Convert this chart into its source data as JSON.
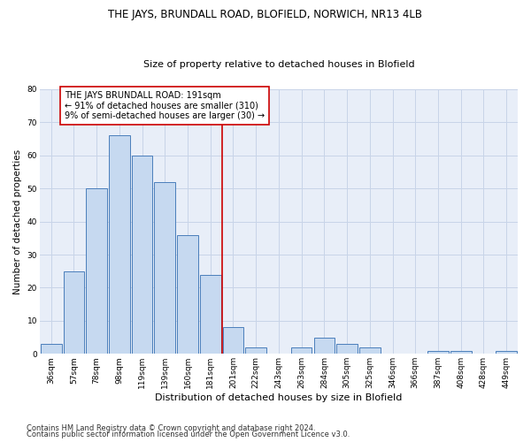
{
  "title": "THE JAYS, BRUNDALL ROAD, BLOFIELD, NORWICH, NR13 4LB",
  "subtitle": "Size of property relative to detached houses in Blofield",
  "xlabel": "Distribution of detached houses by size in Blofield",
  "ylabel": "Number of detached properties",
  "bin_labels": [
    "36sqm",
    "57sqm",
    "78sqm",
    "98sqm",
    "119sqm",
    "139sqm",
    "160sqm",
    "181sqm",
    "201sqm",
    "222sqm",
    "243sqm",
    "263sqm",
    "284sqm",
    "305sqm",
    "325sqm",
    "346sqm",
    "366sqm",
    "387sqm",
    "408sqm",
    "428sqm",
    "449sqm"
  ],
  "bar_values": [
    3,
    25,
    50,
    66,
    60,
    52,
    36,
    24,
    8,
    2,
    0,
    2,
    5,
    3,
    2,
    0,
    0,
    1,
    1,
    0,
    1
  ],
  "bar_color": "#c6d9f0",
  "bar_edge_color": "#4a7ebb",
  "ylim": [
    0,
    80
  ],
  "yticks": [
    0,
    10,
    20,
    30,
    40,
    50,
    60,
    70,
    80
  ],
  "ref_line_x_label": "191sqm",
  "annotation_text": "THE JAYS BRUNDALL ROAD: 191sqm\n← 91% of detached houses are smaller (310)\n9% of semi-detached houses are larger (30) →",
  "annotation_box_color": "#ffffff",
  "annotation_box_edge": "#cc0000",
  "ref_line_color": "#cc0000",
  "footer1": "Contains HM Land Registry data © Crown copyright and database right 2024.",
  "footer2": "Contains public sector information licensed under the Open Government Licence v3.0.",
  "grid_color": "#c8d4e8",
  "background_color": "#e8eef8",
  "title_fontsize": 8.5,
  "subtitle_fontsize": 8.0,
  "xlabel_fontsize": 8.0,
  "ylabel_fontsize": 7.5,
  "tick_fontsize": 6.5,
  "annotation_fontsize": 7.0,
  "footer_fontsize": 6.0
}
